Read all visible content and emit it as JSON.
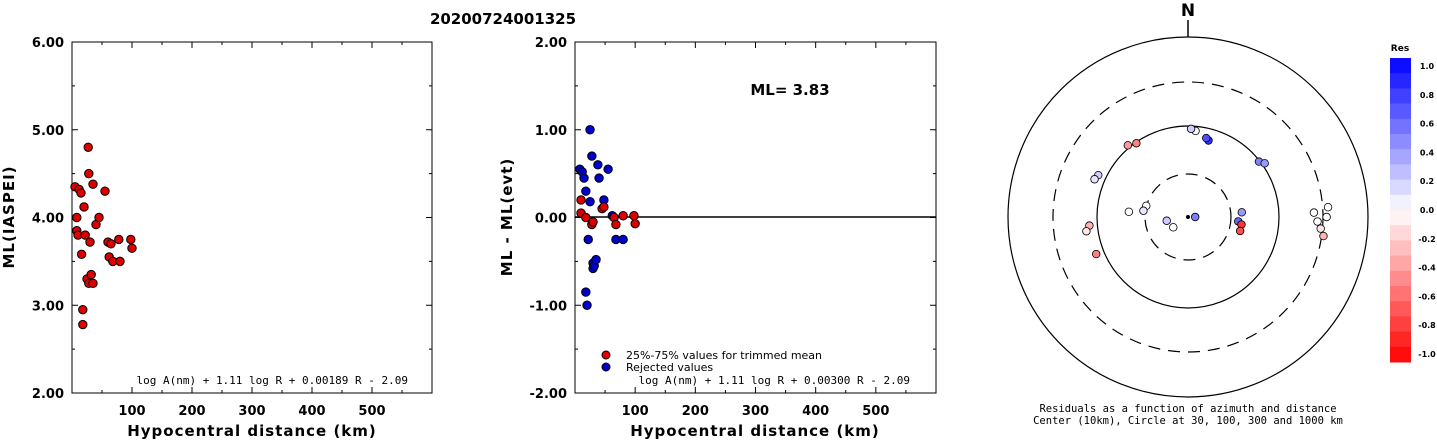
{
  "event_id": "20200724001325",
  "chart_data": [
    {
      "type": "scatter",
      "ylabel": "ML(IASPEI)",
      "xlabel": "Hypocentral distance (km)",
      "xlim": [
        0,
        600
      ],
      "ylim": [
        2.0,
        6.0
      ],
      "xticks": [
        "100",
        "200",
        "300",
        "400",
        "500"
      ],
      "yticks": [
        "2.00",
        "3.00",
        "4.00",
        "5.00",
        "6.00"
      ],
      "formula": "log A(nm) + 1.11 log R + 0.00189 R - 2.09",
      "marker_color": "#dd0000",
      "points": [
        [
          5,
          4.35
        ],
        [
          8,
          4.0
        ],
        [
          8,
          3.85
        ],
        [
          10,
          3.8
        ],
        [
          12,
          4.32
        ],
        [
          15,
          4.28
        ],
        [
          16,
          3.58
        ],
        [
          18,
          2.95
        ],
        [
          18,
          2.78
        ],
        [
          20,
          4.12
        ],
        [
          22,
          3.8
        ],
        [
          25,
          3.3
        ],
        [
          27,
          4.8
        ],
        [
          28,
          4.5
        ],
        [
          28,
          3.25
        ],
        [
          30,
          3.72
        ],
        [
          32,
          3.35
        ],
        [
          35,
          4.38
        ],
        [
          35,
          3.25
        ],
        [
          40,
          3.92
        ],
        [
          45,
          4.0
        ],
        [
          55,
          4.3
        ],
        [
          60,
          3.72
        ],
        [
          62,
          3.55
        ],
        [
          65,
          3.7
        ],
        [
          68,
          3.5
        ],
        [
          78,
          3.75
        ],
        [
          80,
          3.5
        ],
        [
          98,
          3.75
        ],
        [
          100,
          3.65
        ]
      ]
    },
    {
      "type": "scatter",
      "ylabel": "ML - ML(evt)",
      "xlabel": "Hypocentral distance (km)",
      "xlim": [
        0,
        600
      ],
      "ylim": [
        -2.0,
        2.0
      ],
      "xticks": [
        "100",
        "200",
        "300",
        "400",
        "500"
      ],
      "yticks": [
        "-2.00",
        "-1.00",
        "0.00",
        "1.00",
        "2.00"
      ],
      "annotation": "ML= 3.83",
      "formula": "log A(nm) + 1.11 log R + 0.00300 R - 2.09",
      "legend": [
        {
          "label": "25%-75% values for trimmed mean",
          "color": "#dd0000"
        },
        {
          "label": "Rejected values",
          "color": "#0000cc"
        }
      ],
      "series": [
        {
          "name": "25%-75% values for trimmed mean",
          "color": "#dd0000",
          "points": [
            [
              10,
              0.2
            ],
            [
              10,
              0.05
            ],
            [
              18,
              0.0
            ],
            [
              28,
              -0.08
            ],
            [
              30,
              -0.05
            ],
            [
              45,
              0.1
            ],
            [
              48,
              0.12
            ],
            [
              65,
              0.0
            ],
            [
              68,
              -0.08
            ],
            [
              80,
              0.02
            ],
            [
              98,
              0.02
            ],
            [
              100,
              -0.07
            ]
          ]
        },
        {
          "name": "Rejected values",
          "color": "#0000cc",
          "points": [
            [
              8,
              0.55
            ],
            [
              12,
              0.52
            ],
            [
              15,
              0.45
            ],
            [
              18,
              0.3
            ],
            [
              18,
              -0.85
            ],
            [
              20,
              -1.0
            ],
            [
              22,
              -0.25
            ],
            [
              25,
              0.18
            ],
            [
              25,
              1.0
            ],
            [
              28,
              0.7
            ],
            [
              30,
              -0.52
            ],
            [
              30,
              -0.58
            ],
            [
              32,
              -0.55
            ],
            [
              35,
              -0.48
            ],
            [
              38,
              0.6
            ],
            [
              40,
              0.45
            ],
            [
              48,
              0.2
            ],
            [
              55,
              0.55
            ],
            [
              62,
              0.02
            ],
            [
              68,
              -0.25
            ],
            [
              80,
              -0.25
            ]
          ]
        }
      ]
    },
    {
      "type": "polar",
      "north_label": "N",
      "caption_line1": "Residuals as a function of azimuth and distance",
      "caption_line2": "Center (10km), Circle at 30, 100, 300 and 1000 km",
      "rings": [
        {
          "km": 30,
          "style": "dashed"
        },
        {
          "km": 100,
          "style": "solid"
        },
        {
          "km": 300,
          "style": "dashed"
        },
        {
          "km": 1000,
          "style": "solid"
        }
      ],
      "stations": [
        {
          "az": 320,
          "r": 0.52,
          "res": -0.4
        },
        {
          "az": 325,
          "r": 0.5,
          "res": -0.5
        },
        {
          "az": 295,
          "r": 0.55,
          "res": 0.2
        },
        {
          "az": 292,
          "r": 0.56,
          "res": 0.1
        },
        {
          "az": 265,
          "r": 0.55,
          "res": -0.3
        },
        {
          "az": 262,
          "r": 0.57,
          "res": -0.1
        },
        {
          "az": 248,
          "r": 0.55,
          "res": -0.5
        },
        {
          "az": 275,
          "r": 0.33,
          "res": 0.0
        },
        {
          "az": 285,
          "r": 0.24,
          "res": 0.0
        },
        {
          "az": 278,
          "r": 0.25,
          "res": 0.1
        },
        {
          "az": 260,
          "r": 0.12,
          "res": 0.2
        },
        {
          "az": 235,
          "r": 0.1,
          "res": 0.0
        },
        {
          "az": 90,
          "r": 0.04,
          "res": 0.5
        },
        {
          "az": 5,
          "r": 0.48,
          "res": 0.0
        },
        {
          "az": 2,
          "r": 0.49,
          "res": 0.2
        },
        {
          "az": 15,
          "r": 0.44,
          "res": 0.8
        },
        {
          "az": 13,
          "r": 0.45,
          "res": 0.7
        },
        {
          "az": 52,
          "r": 0.5,
          "res": 0.5
        },
        {
          "az": 55,
          "r": 0.52,
          "res": 0.4
        },
        {
          "az": 95,
          "r": 0.28,
          "res": 0.6
        },
        {
          "az": 98,
          "r": 0.3,
          "res": -0.8
        },
        {
          "az": 105,
          "r": 0.3,
          "res": -0.7
        },
        {
          "az": 85,
          "r": 0.3,
          "res": 0.4
        },
        {
          "az": 88,
          "r": 0.7,
          "res": 0.0
        },
        {
          "az": 92,
          "r": 0.72,
          "res": 0.0
        },
        {
          "az": 95,
          "r": 0.74,
          "res": -0.1
        },
        {
          "az": 90,
          "r": 0.77,
          "res": 0.0
        },
        {
          "az": 86,
          "r": 0.78,
          "res": 0.0
        },
        {
          "az": 98,
          "r": 0.76,
          "res": -0.3
        }
      ]
    },
    {
      "type": "colorbar",
      "title": "Res",
      "ticks": [
        "1.0",
        "0.8",
        "0.6",
        "0.4",
        "0.2",
        "0.0",
        "-0.2",
        "-0.4",
        "-0.6",
        "-0.8",
        "-1.0"
      ]
    }
  ]
}
